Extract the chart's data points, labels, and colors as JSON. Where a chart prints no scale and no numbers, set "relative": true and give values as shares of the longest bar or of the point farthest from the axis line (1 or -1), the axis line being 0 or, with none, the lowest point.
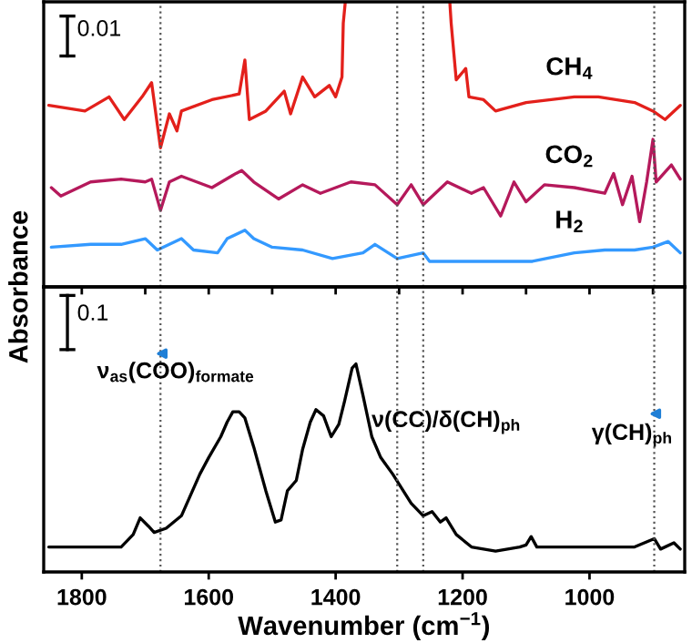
{
  "chart_data": [
    {
      "type": "line",
      "relative": true,
      "xlim": [
        1860,
        850
      ],
      "xticks": [
        1800,
        1700,
        1600,
        1500,
        1400,
        1300,
        1200,
        1100,
        1000,
        900
      ],
      "tick_labels": false,
      "ylabel": "Absorbance",
      "annotations": [
        "0.01"
      ],
      "ref_lines": [
        {
          "axis": "x",
          "value": 1676,
          "color": "#555555",
          "line_style": "dotted"
        },
        {
          "axis": "x",
          "value": 1303,
          "color": "#555555",
          "line_style": "dotted"
        },
        {
          "axis": "x",
          "value": 1262,
          "color": "#555555",
          "line_style": "dotted"
        },
        {
          "axis": "x",
          "value": 898,
          "color": "#555555",
          "line_style": "dotted"
        }
      ],
      "series": [
        {
          "name": "CH$_{4}$",
          "color": "#e3201b",
          "x": [
            1852,
            1795,
            1757,
            1733,
            1705,
            1690,
            1676,
            1662,
            1650,
            1643,
            1595,
            1552,
            1543,
            1536,
            1510,
            1481,
            1471,
            1452,
            1433,
            1410,
            1400,
            1390,
            1388,
            1385,
            1300,
            1220,
            1218,
            1210,
            1195,
            1190,
            1167,
            1148,
            1100,
            1024,
            986,
            929,
            900,
            881,
            857
          ],
          "values": [
            0.64,
            0.62,
            0.67,
            0.59,
            0.67,
            0.72,
            0.49,
            0.61,
            0.55,
            0.62,
            0.66,
            0.68,
            0.8,
            0.59,
            0.62,
            0.69,
            0.61,
            0.74,
            0.67,
            0.71,
            0.67,
            0.74,
            0.93,
            1.0,
            null,
            1.0,
            0.93,
            0.73,
            0.77,
            0.67,
            0.66,
            0.62,
            0.65,
            0.67,
            0.67,
            0.65,
            0.62,
            0.59,
            0.64
          ]
        },
        {
          "name": "CO$_{2}$",
          "color": "#b5195b",
          "x": [
            1848,
            1833,
            1786,
            1738,
            1700,
            1690,
            1676,
            1662,
            1643,
            1595,
            1557,
            1548,
            1529,
            1490,
            1452,
            1424,
            1376,
            1338,
            1303,
            1281,
            1262,
            1224,
            1186,
            1167,
            1140,
            1119,
            1100,
            1071,
            1024,
            976,
            962,
            948,
            933,
            921,
            910,
            900,
            895,
            871,
            857
          ],
          "values": [
            0.35,
            0.32,
            0.37,
            0.38,
            0.37,
            0.38,
            0.27,
            0.37,
            0.39,
            0.35,
            0.4,
            0.41,
            0.37,
            0.31,
            0.36,
            0.33,
            0.37,
            0.36,
            0.29,
            0.36,
            0.29,
            0.37,
            0.33,
            0.35,
            0.25,
            0.37,
            0.3,
            0.36,
            0.35,
            0.33,
            0.4,
            0.29,
            0.39,
            0.23,
            0.37,
            0.52,
            0.37,
            0.43,
            0.38
          ]
        },
        {
          "name": "H$_{2}$",
          "color": "#3399ff",
          "x": [
            1848,
            1786,
            1738,
            1700,
            1681,
            1643,
            1624,
            1586,
            1571,
            1543,
            1529,
            1500,
            1452,
            1405,
            1357,
            1338,
            1303,
            1262,
            1252,
            1167,
            1090,
            1024,
            976,
            929,
            900,
            876,
            857
          ],
          "values": [
            0.14,
            0.15,
            0.15,
            0.17,
            0.13,
            0.17,
            0.13,
            0.12,
            0.17,
            0.2,
            0.17,
            0.14,
            0.13,
            0.1,
            0.12,
            0.15,
            0.1,
            0.12,
            0.09,
            0.09,
            0.09,
            0.12,
            0.13,
            0.13,
            0.14,
            0.16,
            0.12
          ]
        }
      ]
    },
    {
      "type": "line",
      "relative": true,
      "xlim": [
        1860,
        850
      ],
      "xticks": [
        1800,
        1600,
        1400,
        1200,
        1000
      ],
      "xlabel": "Wavenumber (cm$^{−1}$)",
      "annotations": [
        "0.1",
        "ν$_{as}$(COO)$_{formate}$",
        "ν(CC)/δ(CH)$_{ph}$",
        "γ(CH)$_{ph}$"
      ],
      "ref_lines": [
        {
          "axis": "x",
          "value": 1676,
          "color": "#555555",
          "line_style": "dotted"
        },
        {
          "axis": "x",
          "value": 1303,
          "color": "#555555",
          "line_style": "dotted"
        },
        {
          "axis": "x",
          "value": 1262,
          "color": "#555555",
          "line_style": "dotted"
        },
        {
          "axis": "x",
          "value": 898,
          "color": "#555555",
          "line_style": "dotted"
        }
      ],
      "series": [
        {
          "color": "#000000",
          "x": [
            1852,
            1738,
            1719,
            1708,
            1695,
            1686,
            1667,
            1643,
            1614,
            1600,
            1581,
            1571,
            1562,
            1552,
            1543,
            1529,
            1510,
            1495,
            1486,
            1476,
            1462,
            1452,
            1440,
            1431,
            1419,
            1407,
            1395,
            1386,
            1374,
            1368,
            1357,
            1343,
            1329,
            1310,
            1281,
            1262,
            1248,
            1235,
            1226,
            1210,
            1186,
            1148,
            1110,
            1100,
            1092,
            1083,
            1024,
            929,
            898,
            888,
            867,
            857
          ],
          "values": [
            0.12,
            0.12,
            0.18,
            0.26,
            0.22,
            0.19,
            0.21,
            0.27,
            0.47,
            0.55,
            0.65,
            0.72,
            0.77,
            0.77,
            0.74,
            0.6,
            0.39,
            0.24,
            0.25,
            0.39,
            0.44,
            0.59,
            0.72,
            0.78,
            0.75,
            0.65,
            0.71,
            0.82,
            0.98,
            1.0,
            0.85,
            0.65,
            0.55,
            0.47,
            0.33,
            0.27,
            0.29,
            0.24,
            0.26,
            0.18,
            0.12,
            0.1,
            0.12,
            0.13,
            0.17,
            0.12,
            0.12,
            0.12,
            0.16,
            0.11,
            0.14,
            0.11
          ]
        }
      ]
    }
  ]
}
